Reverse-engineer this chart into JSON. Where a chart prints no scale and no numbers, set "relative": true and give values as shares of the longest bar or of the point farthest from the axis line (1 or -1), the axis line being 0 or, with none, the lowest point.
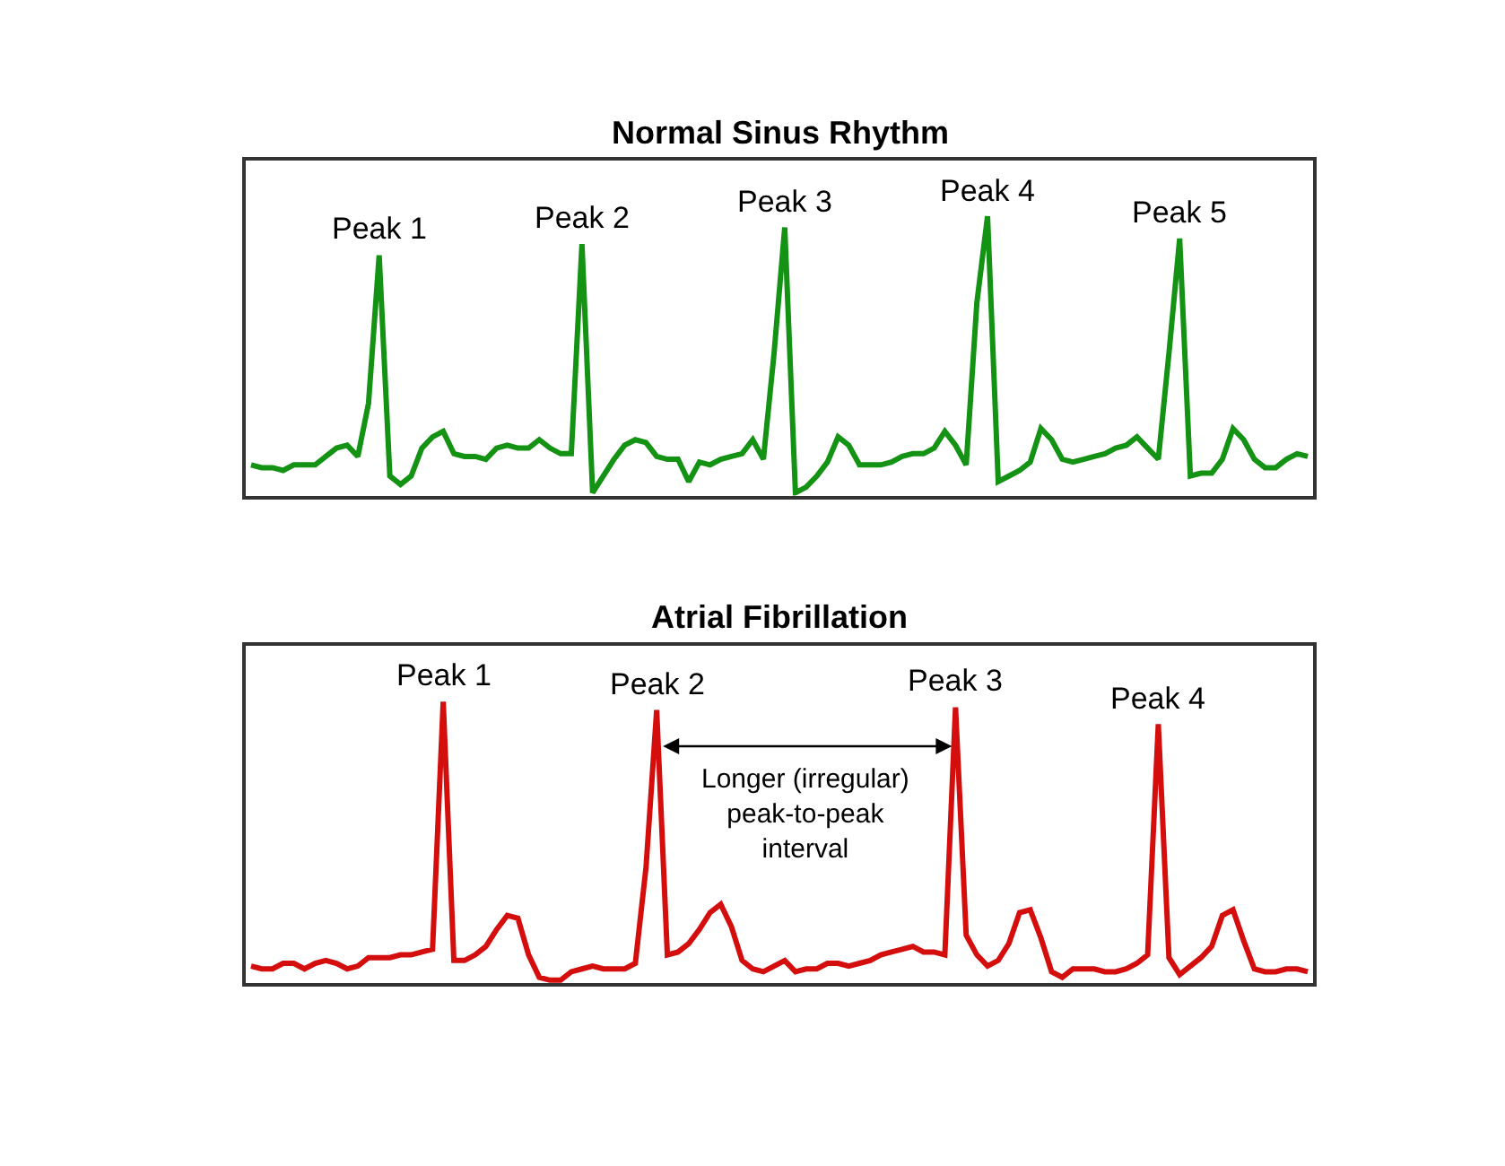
{
  "chart_data": [
    {
      "type": "line",
      "title": "Normal Sinus Rhythm",
      "relative": true,
      "categories": [
        null,
        null,
        null,
        null,
        null,
        null,
        null,
        null,
        null,
        null,
        null,
        null,
        null,
        null,
        null,
        null,
        null,
        null,
        null,
        null,
        null,
        null,
        null,
        null,
        null,
        null,
        null,
        null,
        null,
        null,
        null,
        null,
        null,
        null,
        null,
        null,
        null,
        null,
        null,
        null,
        null,
        null,
        null,
        null,
        null,
        null,
        null,
        null,
        null,
        null,
        null,
        null,
        null,
        null,
        null,
        null,
        null,
        null,
        null,
        null,
        null,
        null,
        null,
        null,
        null,
        null,
        null,
        null,
        null,
        null,
        null,
        null,
        null,
        null,
        null,
        null,
        null,
        null,
        null,
        null,
        null,
        null,
        null,
        null,
        null,
        null,
        null,
        null,
        null,
        null,
        null,
        null,
        null,
        null,
        null,
        null,
        null,
        null,
        null,
        null
      ],
      "series": [
        {
          "color": "#139213",
          "values": [
            0.11,
            0.1,
            0.1,
            0.09,
            0.11,
            0.11,
            0.11,
            0.14,
            0.17,
            0.18,
            0.14,
            0.33,
            0.86,
            0.07,
            0.04,
            0.07,
            0.17,
            0.21,
            0.23,
            0.15,
            0.14,
            0.14,
            0.13,
            0.17,
            0.18,
            0.17,
            0.17,
            0.2,
            0.17,
            0.15,
            0.15,
            0.9,
            0.01,
            0.07,
            0.13,
            0.18,
            0.2,
            0.19,
            0.14,
            0.13,
            0.13,
            0.05,
            0.12,
            0.11,
            0.13,
            0.14,
            0.15,
            0.2,
            0.13,
            0.51,
            0.96,
            0.01,
            0.03,
            0.07,
            0.12,
            0.21,
            0.18,
            0.11,
            0.11,
            0.11,
            0.12,
            0.14,
            0.15,
            0.15,
            0.17,
            0.23,
            0.18,
            0.11,
            0.69,
            1.0,
            0.05,
            0.07,
            0.09,
            0.12,
            0.24,
            0.2,
            0.13,
            0.12,
            0.13,
            0.14,
            0.15,
            0.17,
            0.18,
            0.21,
            0.17,
            0.13,
            0.51,
            0.92,
            0.07,
            0.08,
            0.08,
            0.13,
            0.24,
            0.2,
            0.13,
            0.1,
            0.1,
            0.13,
            0.15,
            0.14
          ]
        }
      ],
      "annotations": [
        "Peak 1",
        "Peak 2",
        "Peak 3",
        "Peak 4",
        "Peak 5"
      ]
    },
    {
      "type": "line",
      "title": "Atrial Fibrillation",
      "relative": true,
      "categories": [
        null,
        null,
        null,
        null,
        null,
        null,
        null,
        null,
        null,
        null,
        null,
        null,
        null,
        null,
        null,
        null,
        null,
        null,
        null,
        null,
        null,
        null,
        null,
        null,
        null,
        null,
        null,
        null,
        null,
        null,
        null,
        null,
        null,
        null,
        null,
        null,
        null,
        null,
        null,
        null,
        null,
        null,
        null,
        null,
        null,
        null,
        null,
        null,
        null,
        null,
        null,
        null,
        null,
        null,
        null,
        null,
        null,
        null,
        null,
        null,
        null,
        null,
        null,
        null,
        null,
        null,
        null,
        null,
        null,
        null,
        null,
        null,
        null,
        null,
        null,
        null,
        null,
        null,
        null,
        null,
        null,
        null,
        null,
        null,
        null,
        null,
        null,
        null,
        null,
        null,
        null,
        null,
        null,
        null,
        null,
        null,
        null,
        null,
        null,
        null
      ],
      "series": [
        {
          "color": "#d40d0d",
          "values": [
            0.06,
            0.05,
            0.05,
            0.07,
            0.07,
            0.05,
            0.07,
            0.08,
            0.07,
            0.05,
            0.06,
            0.09,
            0.09,
            0.09,
            0.1,
            0.1,
            0.11,
            0.12,
            1.0,
            0.08,
            0.08,
            0.1,
            0.13,
            0.19,
            0.24,
            0.23,
            0.1,
            0.02,
            0.01,
            0.01,
            0.04,
            0.05,
            0.06,
            0.05,
            0.05,
            0.05,
            0.07,
            0.41,
            0.97,
            0.1,
            0.11,
            0.14,
            0.19,
            0.25,
            0.28,
            0.2,
            0.08,
            0.05,
            0.04,
            0.06,
            0.08,
            0.04,
            0.05,
            0.05,
            0.07,
            0.07,
            0.06,
            0.07,
            0.08,
            0.1,
            0.11,
            0.12,
            0.13,
            0.11,
            0.11,
            0.1,
            0.98,
            0.17,
            0.1,
            0.06,
            0.08,
            0.14,
            0.25,
            0.26,
            0.16,
            0.04,
            0.02,
            0.05,
            0.05,
            0.05,
            0.04,
            0.04,
            0.05,
            0.07,
            0.1,
            0.92,
            0.09,
            0.03,
            0.06,
            0.09,
            0.13,
            0.24,
            0.26,
            0.15,
            0.05,
            0.04,
            0.04,
            0.05,
            0.05,
            0.04
          ]
        }
      ],
      "annotations": [
        "Peak 1",
        "Peak 2",
        "Peak 3",
        "Peak 4",
        "Longer (irregular)\npeak-to-peak\ninterval"
      ]
    }
  ]
}
